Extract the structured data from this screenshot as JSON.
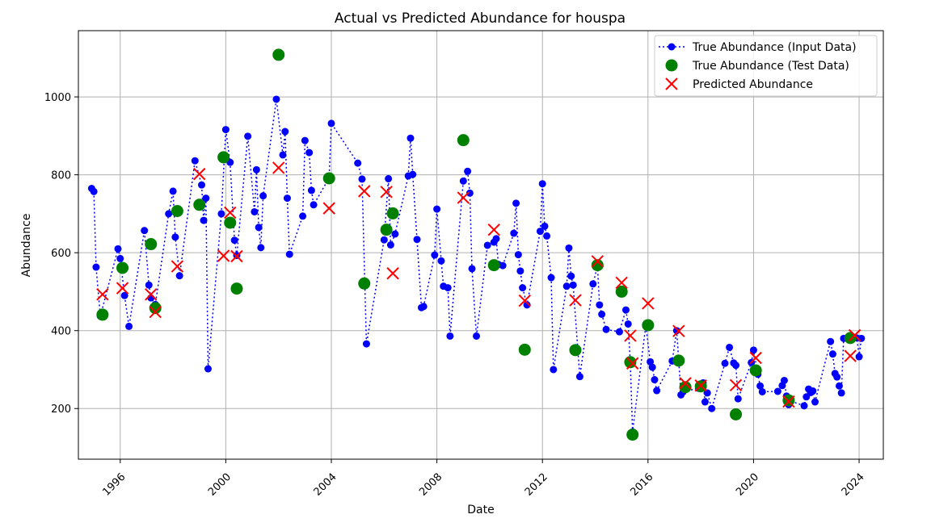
{
  "chart_data": {
    "type": "scatter",
    "title": "Actual vs Predicted Abundance for houspa",
    "xlabel": "Date",
    "ylabel": "Abundance",
    "x_axis_type": "date",
    "xlim": [
      "1994-06-01",
      "2024-12-01"
    ],
    "ylim": [
      70,
      1170
    ],
    "x_ticks": [
      "1996",
      "2000",
      "2004",
      "2008",
      "2012",
      "2016",
      "2020",
      "2024"
    ],
    "y_ticks": [
      200,
      400,
      600,
      800,
      1000
    ],
    "grid": true,
    "legend_position": "top-right",
    "colors": {
      "input": "#0000ff",
      "test": "#008000",
      "predicted": "#ff0000"
    },
    "series": [
      {
        "name": "True Abundance (Input Data)",
        "style": "dotted-line-with-markers",
        "points": [
          [
            "1994-12-01",
            765
          ],
          [
            "1995-01-01",
            757
          ],
          [
            "1995-02-01",
            563
          ],
          [
            "1995-04-01",
            437
          ],
          [
            "1995-12-01",
            610
          ],
          [
            "1996-01-01",
            585
          ],
          [
            "1996-03-01",
            490
          ],
          [
            "1996-05-01",
            411
          ],
          [
            "1996-12-01",
            657
          ],
          [
            "1997-02-01",
            517
          ],
          [
            "1997-03-01",
            484
          ],
          [
            "1997-05-01",
            467
          ],
          [
            "1997-11-01",
            700
          ],
          [
            "1998-01-01",
            758
          ],
          [
            "1998-02-01",
            640
          ],
          [
            "1998-04-01",
            541
          ],
          [
            "1998-11-01",
            836
          ],
          [
            "1999-02-01",
            774
          ],
          [
            "1999-03-01",
            683
          ],
          [
            "1999-04-01",
            740
          ],
          [
            "1999-05-01",
            302
          ],
          [
            "1999-11-01",
            700
          ],
          [
            "2000-01-01",
            916
          ],
          [
            "2000-03-01",
            832
          ],
          [
            "2000-05-01",
            632
          ],
          [
            "2000-06-01",
            593
          ],
          [
            "2000-11-01",
            899
          ],
          [
            "2001-02-01",
            705
          ],
          [
            "2001-03-01",
            813
          ],
          [
            "2001-04-01",
            665
          ],
          [
            "2001-05-01",
            613
          ],
          [
            "2001-06-01",
            746
          ],
          [
            "2001-12-01",
            994
          ],
          [
            "2002-03-01",
            851
          ],
          [
            "2002-04-01",
            911
          ],
          [
            "2002-05-01",
            740
          ],
          [
            "2002-06-01",
            596
          ],
          [
            "2002-12-01",
            694
          ],
          [
            "2003-01-01",
            888
          ],
          [
            "2003-03-01",
            857
          ],
          [
            "2003-04-01",
            760
          ],
          [
            "2003-05-01",
            723
          ],
          [
            "2003-12-01",
            792
          ],
          [
            "2004-01-01",
            932
          ],
          [
            "2005-01-01",
            830
          ],
          [
            "2005-03-01",
            789
          ],
          [
            "2005-05-01",
            366
          ],
          [
            "2006-01-01",
            633
          ],
          [
            "2006-03-01",
            790
          ],
          [
            "2006-04-01",
            620
          ],
          [
            "2006-06-01",
            648
          ],
          [
            "2006-12-01",
            797
          ],
          [
            "2007-01-01",
            894
          ],
          [
            "2007-02-01",
            801
          ],
          [
            "2007-04-01",
            634
          ],
          [
            "2007-06-01",
            459
          ],
          [
            "2007-07-01",
            462
          ],
          [
            "2007-12-01",
            594
          ],
          [
            "2008-01-01",
            712
          ],
          [
            "2008-03-01",
            579
          ],
          [
            "2008-04-01",
            514
          ],
          [
            "2008-06-01",
            510
          ],
          [
            "2008-07-01",
            386
          ],
          [
            "2009-01-01",
            784
          ],
          [
            "2009-03-01",
            809
          ],
          [
            "2009-04-01",
            753
          ],
          [
            "2009-05-01",
            559
          ],
          [
            "2009-07-01",
            386
          ],
          [
            "2009-12-01",
            619
          ],
          [
            "2010-03-01",
            627
          ],
          [
            "2010-04-01",
            636
          ],
          [
            "2010-05-01",
            570
          ],
          [
            "2010-07-01",
            567
          ],
          [
            "2010-12-01",
            650
          ],
          [
            "2011-01-01",
            727
          ],
          [
            "2011-02-01",
            595
          ],
          [
            "2011-03-01",
            553
          ],
          [
            "2011-04-01",
            510
          ],
          [
            "2011-06-01",
            466
          ],
          [
            "2011-12-01",
            655
          ],
          [
            "2012-01-01",
            777
          ],
          [
            "2012-02-01",
            668
          ],
          [
            "2012-03-01",
            643
          ],
          [
            "2012-05-01",
            536
          ],
          [
            "2012-06-01",
            300
          ],
          [
            "2012-12-01",
            514
          ],
          [
            "2013-01-01",
            612
          ],
          [
            "2013-02-01",
            540
          ],
          [
            "2013-03-01",
            517
          ],
          [
            "2013-06-01",
            282
          ],
          [
            "2013-12-01",
            520
          ],
          [
            "2014-02-01",
            566
          ],
          [
            "2014-03-01",
            466
          ],
          [
            "2014-04-01",
            442
          ],
          [
            "2014-06-01",
            403
          ],
          [
            "2014-12-01",
            397
          ],
          [
            "2015-03-01",
            453
          ],
          [
            "2015-04-01",
            417
          ],
          [
            "2015-05-01",
            320
          ],
          [
            "2015-06-01",
            140
          ],
          [
            "2015-12-01",
            413
          ],
          [
            "2016-02-01",
            320
          ],
          [
            "2016-03-01",
            306
          ],
          [
            "2016-04-01",
            274
          ],
          [
            "2016-05-01",
            246
          ],
          [
            "2016-12-01",
            322
          ],
          [
            "2017-02-01",
            400
          ],
          [
            "2017-03-01",
            324
          ],
          [
            "2017-04-01",
            235
          ],
          [
            "2017-05-01",
            243
          ],
          [
            "2017-12-01",
            252
          ],
          [
            "2018-02-01",
            266
          ],
          [
            "2018-03-01",
            217
          ],
          [
            "2018-04-01",
            240
          ],
          [
            "2018-06-01",
            200
          ],
          [
            "2018-12-01",
            316
          ],
          [
            "2019-02-01",
            357
          ],
          [
            "2019-04-01",
            317
          ],
          [
            "2019-05-01",
            311
          ],
          [
            "2019-06-01",
            225
          ],
          [
            "2019-12-01",
            318
          ],
          [
            "2020-01-01",
            350
          ],
          [
            "2020-03-01",
            288
          ],
          [
            "2020-04-01",
            258
          ],
          [
            "2020-05-01",
            243
          ],
          [
            "2020-12-01",
            244
          ],
          [
            "2021-02-01",
            259
          ],
          [
            "2021-03-01",
            272
          ],
          [
            "2021-04-01",
            232
          ],
          [
            "2021-05-01",
            210
          ],
          [
            "2021-06-01",
            219
          ],
          [
            "2021-12-01",
            207
          ],
          [
            "2022-01-01",
            230
          ],
          [
            "2022-02-01",
            250
          ],
          [
            "2022-03-01",
            241
          ],
          [
            "2022-04-01",
            245
          ],
          [
            "2022-05-01",
            217
          ],
          [
            "2022-12-01",
            372
          ],
          [
            "2023-01-01",
            340
          ],
          [
            "2023-02-01",
            290
          ],
          [
            "2023-03-01",
            281
          ],
          [
            "2023-04-01",
            258
          ],
          [
            "2023-05-01",
            240
          ],
          [
            "2023-06-01",
            380
          ],
          [
            "2023-12-01",
            381
          ],
          [
            "2024-01-01",
            333
          ],
          [
            "2024-02-01",
            380
          ]
        ]
      },
      {
        "name": "True Abundance (Test Data)",
        "style": "large-markers",
        "points": [
          [
            "1995-05-01",
            441
          ],
          [
            "1996-02-01",
            561
          ],
          [
            "1997-03-01",
            622
          ],
          [
            "1997-05-01",
            458
          ],
          [
            "1998-03-01",
            707
          ],
          [
            "1999-01-01",
            723
          ],
          [
            "1999-12-01",
            845
          ],
          [
            "2000-03-01",
            677
          ],
          [
            "2000-06-01",
            508
          ],
          [
            "2002-01-01",
            1108
          ],
          [
            "2003-12-01",
            791
          ],
          [
            "2005-04-01",
            521
          ],
          [
            "2006-02-01",
            659
          ],
          [
            "2006-05-01",
            701
          ],
          [
            "2009-01-01",
            889
          ],
          [
            "2010-03-01",
            568
          ],
          [
            "2011-05-01",
            351
          ],
          [
            "2013-04-01",
            350
          ],
          [
            "2014-02-01",
            568
          ],
          [
            "2015-01-01",
            500
          ],
          [
            "2015-05-01",
            319
          ],
          [
            "2015-06-01",
            133
          ],
          [
            "2016-01-01",
            414
          ],
          [
            "2017-03-01",
            323
          ],
          [
            "2017-06-01",
            255
          ],
          [
            "2018-01-01",
            257
          ],
          [
            "2019-05-01",
            185
          ],
          [
            "2020-02-01",
            298
          ],
          [
            "2021-05-01",
            221
          ],
          [
            "2023-09-01",
            381
          ]
        ]
      },
      {
        "name": "Predicted Abundance",
        "style": "x-markers",
        "points": [
          [
            "1995-05-01",
            493
          ],
          [
            "1996-02-01",
            509
          ],
          [
            "1997-03-01",
            493
          ],
          [
            "1997-05-01",
            448
          ],
          [
            "1998-03-01",
            565
          ],
          [
            "1999-01-01",
            802
          ],
          [
            "1999-12-01",
            592
          ],
          [
            "2000-03-01",
            703
          ],
          [
            "2000-06-01",
            591
          ],
          [
            "2002-01-01",
            818
          ],
          [
            "2003-12-01",
            714
          ],
          [
            "2005-04-01",
            758
          ],
          [
            "2006-02-01",
            756
          ],
          [
            "2006-05-01",
            547
          ],
          [
            "2009-01-01",
            741
          ],
          [
            "2010-03-01",
            659
          ],
          [
            "2011-05-01",
            477
          ],
          [
            "2013-04-01",
            478
          ],
          [
            "2014-02-01",
            578
          ],
          [
            "2015-01-01",
            523
          ],
          [
            "2015-05-01",
            387
          ],
          [
            "2015-06-01",
            316
          ],
          [
            "2016-01-01",
            470
          ],
          [
            "2017-03-01",
            399
          ],
          [
            "2017-06-01",
            265
          ],
          [
            "2018-01-01",
            259
          ],
          [
            "2019-05-01",
            260
          ],
          [
            "2020-02-01",
            330
          ],
          [
            "2021-05-01",
            218
          ],
          [
            "2023-09-01",
            335
          ],
          [
            "2023-11-01",
            388
          ]
        ]
      }
    ]
  }
}
